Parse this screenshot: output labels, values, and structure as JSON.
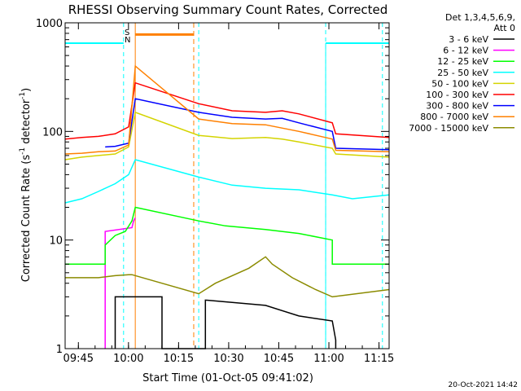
{
  "chart_data": {
    "type": "line",
    "title": "RHESSI Observing Summary Count Rates, Corrected",
    "xlabel": "Start Time (01-Oct-05 09:41:02)",
    "ylabel_parts": [
      "Corrected Count Rate (s",
      "-1",
      " detector",
      "-1",
      ")"
    ],
    "x_unit": "minutes after 09:41:02",
    "xlim": [
      0,
      97
    ],
    "ylim": [
      1,
      1000
    ],
    "y_scale": "log",
    "x_ticks": [
      {
        "m": 3.97,
        "label": "09:45"
      },
      {
        "m": 18.97,
        "label": "10:00"
      },
      {
        "m": 33.97,
        "label": "10:15"
      },
      {
        "m": 48.97,
        "label": "10:30"
      },
      {
        "m": 63.97,
        "label": "10:45"
      },
      {
        "m": 78.97,
        "label": "11:00"
      },
      {
        "m": 93.97,
        "label": "11:15"
      }
    ],
    "y_ticks": [
      {
        "v": 1,
        "label": "1"
      },
      {
        "v": 10,
        "label": "10"
      },
      {
        "v": 100,
        "label": "100"
      },
      {
        "v": 1000,
        "label": "1000"
      }
    ],
    "legend_header": [
      "Det 1,3,4,5,6,9,",
      "Att 0"
    ],
    "series": [
      {
        "name": "3 - 6 keV",
        "color": "#000000",
        "points": [
          [
            15,
            1
          ],
          [
            15,
            3
          ],
          [
            29,
            3
          ],
          [
            29,
            1
          ],
          [
            42,
            1
          ],
          [
            42,
            2.8
          ],
          [
            60,
            2.5
          ],
          [
            70,
            2
          ],
          [
            80,
            1.8
          ],
          [
            81,
            1.2
          ],
          [
            81,
            1
          ]
        ]
      },
      {
        "name": "6 - 12 keV",
        "color": "#ff00ff",
        "points": [
          [
            12,
            1
          ],
          [
            12,
            12
          ],
          [
            20,
            13
          ],
          [
            20.5,
            15
          ],
          [
            21,
            16
          ]
        ]
      },
      {
        "name": "12 - 25 keV",
        "color": "#00ff00",
        "points": [
          [
            0,
            6
          ],
          [
            5,
            6
          ],
          [
            12,
            6
          ],
          [
            12,
            9
          ],
          [
            15,
            11
          ],
          [
            18,
            12
          ],
          [
            20,
            15
          ],
          [
            21,
            20
          ],
          [
            40,
            15
          ],
          [
            48,
            13.5
          ],
          [
            60,
            12.5
          ],
          [
            70,
            11.5
          ],
          [
            80,
            10
          ],
          [
            80,
            6
          ],
          [
            97,
            6
          ]
        ]
      },
      {
        "name": "25 - 50 keV",
        "color": "#00ffff",
        "points": [
          [
            0,
            22
          ],
          [
            5,
            24
          ],
          [
            10,
            28
          ],
          [
            15,
            33
          ],
          [
            19,
            40
          ],
          [
            21,
            55
          ],
          [
            40,
            38
          ],
          [
            50,
            32
          ],
          [
            60,
            30
          ],
          [
            70,
            29
          ],
          [
            80,
            26
          ],
          [
            86,
            24
          ],
          [
            97,
            26
          ]
        ]
      },
      {
        "name": "50 - 100 keV",
        "color": "#d4d400",
        "points": [
          [
            0,
            55
          ],
          [
            5,
            58
          ],
          [
            10,
            60
          ],
          [
            15,
            62
          ],
          [
            19,
            72
          ],
          [
            21,
            150
          ],
          [
            40,
            92
          ],
          [
            50,
            86
          ],
          [
            60,
            88
          ],
          [
            65,
            85
          ],
          [
            70,
            80
          ],
          [
            80,
            70
          ],
          [
            81,
            62
          ],
          [
            97,
            58
          ]
        ]
      },
      {
        "name": "100 - 300 keV",
        "color": "#ff0000",
        "points": [
          [
            0,
            85
          ],
          [
            5,
            88
          ],
          [
            10,
            90
          ],
          [
            15,
            95
          ],
          [
            19,
            110
          ],
          [
            21,
            280
          ],
          [
            40,
            180
          ],
          [
            50,
            155
          ],
          [
            60,
            150
          ],
          [
            65,
            155
          ],
          [
            70,
            145
          ],
          [
            80,
            120
          ],
          [
            81,
            95
          ],
          [
            97,
            88
          ]
        ]
      },
      {
        "name": "300 - 800 keV",
        "color": "#0000ff",
        "points": [
          [
            12,
            72
          ],
          [
            15,
            73
          ],
          [
            19,
            78
          ],
          [
            21,
            200
          ],
          [
            40,
            150
          ],
          [
            50,
            135
          ],
          [
            60,
            130
          ],
          [
            65,
            132
          ],
          [
            70,
            120
          ],
          [
            80,
            100
          ],
          [
            81,
            70
          ],
          [
            97,
            68
          ]
        ]
      },
      {
        "name": "800 - 7000 keV",
        "color": "#ff8000",
        "points": [
          [
            0,
            62
          ],
          [
            5,
            63
          ],
          [
            10,
            65
          ],
          [
            15,
            66
          ],
          [
            19,
            75
          ],
          [
            21,
            400
          ],
          [
            40,
            130
          ],
          [
            50,
            118
          ],
          [
            60,
            115
          ],
          [
            70,
            100
          ],
          [
            80,
            85
          ],
          [
            81,
            67
          ],
          [
            97,
            65
          ]
        ]
      },
      {
        "name": "7000 - 15000 keV",
        "color": "#8b8b00",
        "points": [
          [
            0,
            4.5
          ],
          [
            10,
            4.5
          ],
          [
            15,
            4.7
          ],
          [
            19,
            4.8
          ],
          [
            20,
            4.8
          ],
          [
            40,
            3.2
          ],
          [
            45,
            4
          ],
          [
            55,
            5.5
          ],
          [
            60,
            7
          ],
          [
            62,
            6
          ],
          [
            68,
            4.5
          ],
          [
            75,
            3.5
          ],
          [
            80,
            3
          ],
          [
            97,
            3.5
          ]
        ]
      }
    ],
    "annotations": [
      {
        "text": "S",
        "color": "#ff8000"
      },
      {
        "text": "N",
        "color": "#00ffff"
      }
    ],
    "attenuator_lines_orange": [
      21,
      38.5
    ],
    "night_lines_cyan": [
      17.5,
      40,
      78,
      95
    ],
    "cyan_level_segments": [
      [
        0,
        17.5,
        650
      ],
      [
        78,
        97,
        650
      ]
    ],
    "orange_level_segment": [
      21,
      38.5,
      780
    ],
    "timestamp": "20-Oct-2021 14:42"
  }
}
